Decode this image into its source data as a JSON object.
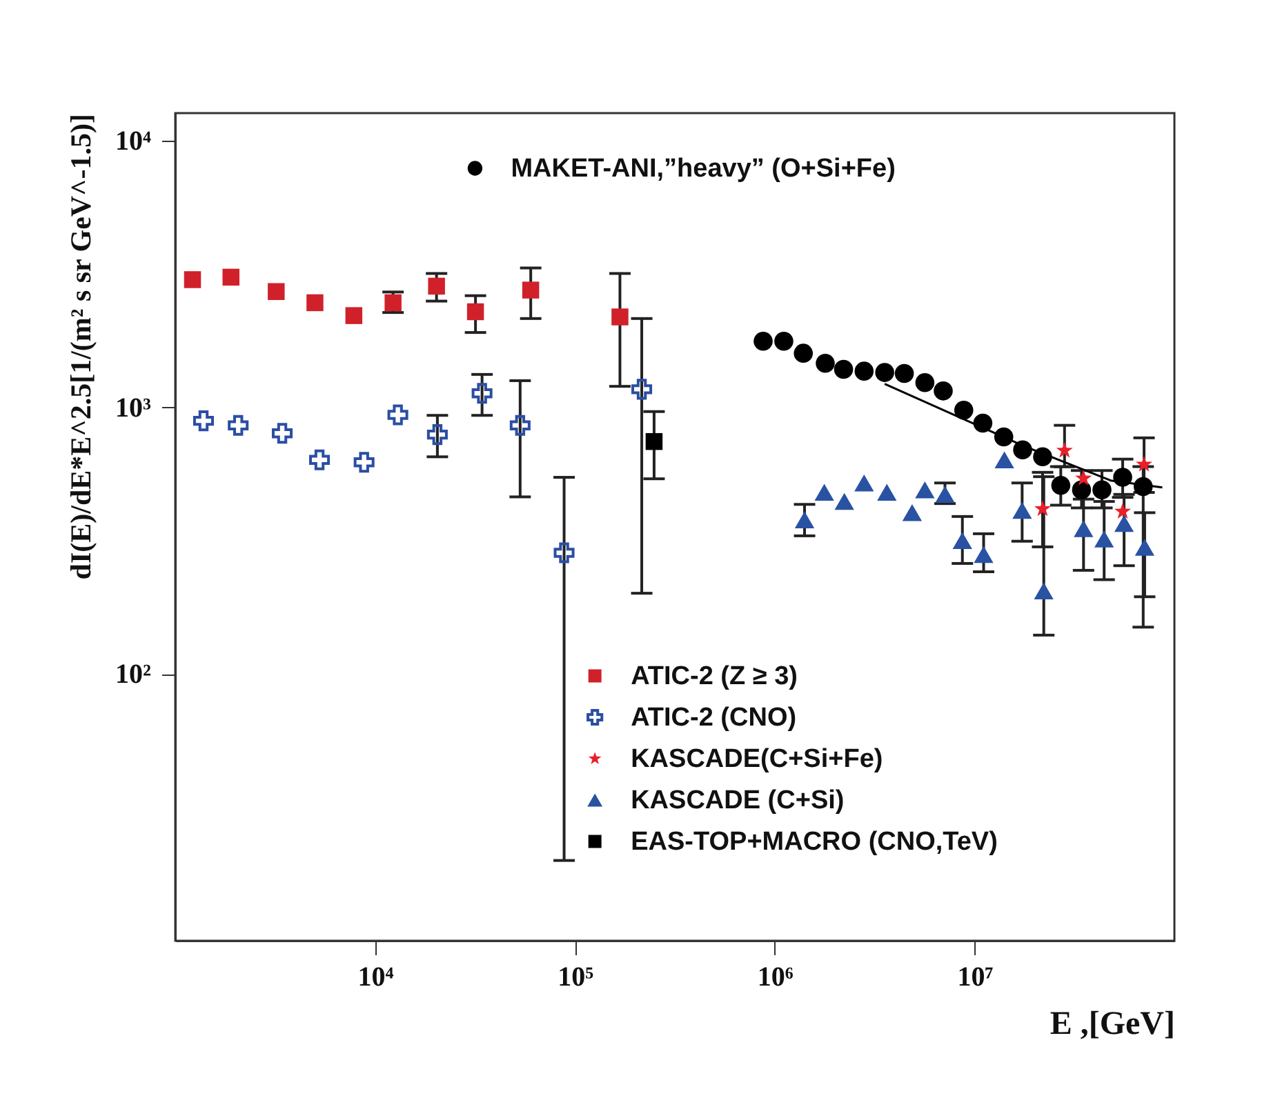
{
  "chart_data": {
    "type": "scatter",
    "xlabel": "E ,[GeV]",
    "ylabel": "dI(E)/dE*E^2.5[1/(m² s sr GeV^-1.5)]",
    "xlim": [
      1000,
      100000000
    ],
    "ylim": [
      10,
      12700
    ],
    "xticks": [
      {
        "value": 10000,
        "label": "10⁴"
      },
      {
        "value": 100000,
        "label": "10⁵"
      },
      {
        "value": 1000000,
        "label": "10⁶"
      },
      {
        "value": 10000000,
        "label": "10⁷"
      }
    ],
    "yticks": [
      {
        "value": 100,
        "label": "10²"
      },
      {
        "value": 1000,
        "label": "10³"
      },
      {
        "value": 10000,
        "label": "10⁴"
      }
    ],
    "log": "xy",
    "grid": false,
    "legend": "right",
    "series": [
      {
        "name": "MAKET-ANI,”heavy” (O+Si+Fe)",
        "color": "#000000",
        "marker": "circle",
        "x": [
          875000,
          1110000,
          1390000,
          1790000,
          2210000,
          2800000,
          3550000,
          4450000,
          5640000,
          6970000,
          8830000,
          11000000,
          14000000,
          17400000,
          21900000,
          27000000,
          34300000,
          43400000,
          55100000,
          69800000
        ],
        "values": [
          1772,
          1772,
          1597,
          1464,
          1390,
          1368,
          1352,
          1341,
          1239,
          1153,
          977,
          873,
          775,
          693,
          653,
          510,
          491,
          491,
          547,
          505
        ],
        "errors": [
          null,
          null,
          null,
          null,
          null,
          null,
          null,
          null,
          null,
          null,
          null,
          null,
          null,
          null,
          null,
          [
            430,
            600
          ],
          [
            420,
            580
          ],
          [
            420,
            580
          ],
          [
            460,
            640
          ],
          [
            150,
            600
          ]
        ]
      },
      {
        "type": "line",
        "color": "#000000",
        "marker": "none",
        "x": [
          3550000,
          17700000,
          48000000,
          87000000
        ],
        "values": [
          1225,
          716,
          532,
          501
        ]
      },
      {
        "name": "ATIC-2 (Z ≥ 3)",
        "color": "#d0212a",
        "marker": "square",
        "x": [
          1220,
          1900,
          3200,
          5000,
          7830,
          12300,
          20300,
          31800,
          60100,
          168000
        ],
        "values": [
          3015,
          3080,
          2720,
          2470,
          2210,
          2470,
          2850,
          2285,
          2755,
          2185
        ],
        "errors": [
          null,
          null,
          null,
          null,
          null,
          [
            2270,
            2710
          ],
          [
            2505,
            3180
          ],
          [
            1910,
            2625
          ],
          [
            2155,
            3335
          ],
          [
            1200,
            3180
          ]
        ]
      },
      {
        "name": "ATIC-2 (CNO)",
        "color": "#2b4ea2",
        "marker": "cross",
        "x": [
          1385,
          2065,
          3430,
          5270,
          8810,
          13000,
          20500,
          34300,
          53200,
          88300,
          216000
        ],
        "values": [
          891,
          857,
          800,
          636,
          623,
          938,
          791,
          1130,
          857,
          285,
          1170
        ],
        "errors": [
          null,
          null,
          null,
          null,
          null,
          null,
          [
            653,
            934
          ],
          [
            934,
            1330
          ],
          [
            462,
            1260
          ],
          [
            20,
            547
          ],
          [
            201,
            2155
          ]
        ]
      },
      {
        "name": "KASCADE(C+Si+Fe)",
        "color": "#e8202a",
        "marker": "star",
        "x": [
          21900000,
          28200000,
          35100000,
          55100000,
          70500000
        ],
        "values": [
          416,
          689,
          542,
          407,
          611
        ],
        "errors": [
          [
            300,
            571
          ],
          [
            599,
            857
          ],
          null,
          null,
          [
            480,
            769
          ]
        ]
      },
      {
        "name": "KASCADE (C+Si)",
        "color": "#2952a3",
        "marker": "triangle",
        "x": [
          1410000,
          1770000,
          2230000,
          2800000,
          3640000,
          4870000,
          5640000,
          7110000,
          8690000,
          11100000,
          14100000,
          17300000,
          22200000,
          35100000,
          44500000,
          56000000,
          71000000
        ],
        "values": [
          379,
          481,
          444,
          521,
          481,
          403,
          491,
          472,
          317,
          281,
          636,
          411,
          205,
          351,
          321,
          367,
          299
        ],
        "errors": [
          [
            330,
            433
          ],
          null,
          null,
          null,
          null,
          null,
          null,
          [
            436,
            521
          ],
          [
            260,
            390
          ],
          [
            242,
            336
          ],
          null,
          [
            315,
            521
          ],
          [
            140,
            550
          ],
          [
            245,
            453
          ],
          [
            226,
            444
          ],
          [
            255,
            472
          ],
          [
            195,
            403
          ]
        ]
      },
      {
        "name": "EAS-TOP+MACRO (CNO,TeV)",
        "color": "#000000",
        "marker": "square",
        "x": [
          249000
        ],
        "values": [
          745
        ],
        "errors": [
          [
            540,
            965
          ]
        ]
      }
    ]
  }
}
